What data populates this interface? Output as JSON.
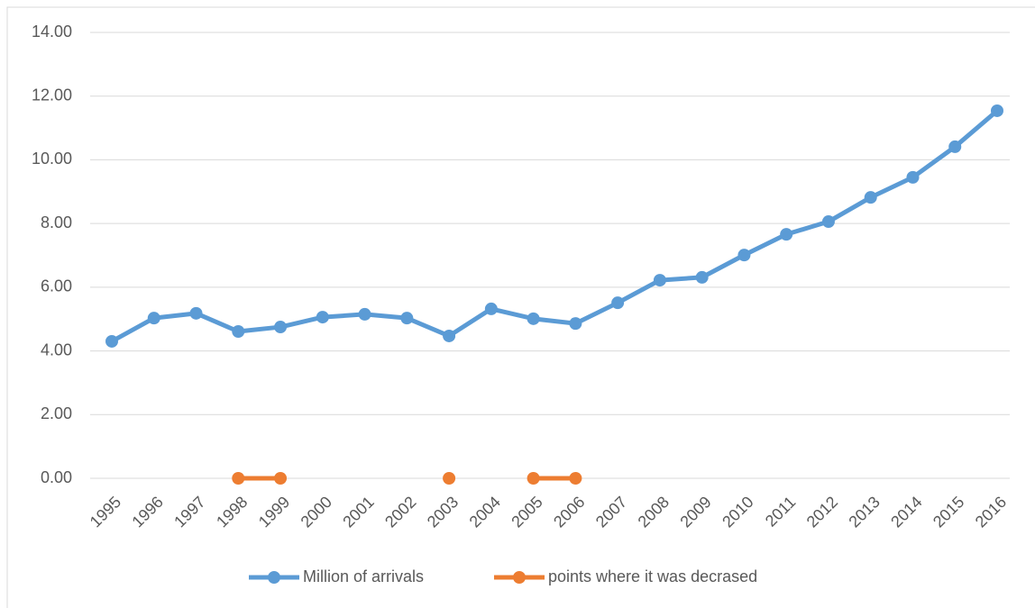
{
  "chart_data": {
    "type": "line",
    "categories": [
      "1995",
      "1996",
      "1997",
      "1998",
      "1999",
      "2000",
      "2001",
      "2002",
      "2003",
      "2004",
      "2005",
      "2006",
      "2007",
      "2008",
      "2009",
      "2010",
      "2011",
      "2012",
      "2013",
      "2014",
      "2015",
      "2016"
    ],
    "series": [
      {
        "name": "Million of arrivals",
        "color": "#5b9bd5",
        "values": [
          4.3,
          5.03,
          5.18,
          4.61,
          4.75,
          5.06,
          5.15,
          5.03,
          4.47,
          5.32,
          5.01,
          4.86,
          5.51,
          6.22,
          6.31,
          7.01,
          7.66,
          8.06,
          8.82,
          9.45,
          10.41,
          11.54
        ]
      },
      {
        "name": "points where it was decrased",
        "color": "#ed7d31",
        "values": [
          null,
          null,
          null,
          0,
          0,
          null,
          null,
          null,
          0,
          null,
          0,
          0,
          null,
          null,
          null,
          null,
          null,
          null,
          null,
          null,
          null,
          null
        ]
      }
    ],
    "ylim": [
      0,
      14
    ],
    "yticks": [
      {
        "value": 0,
        "label": "0.00"
      },
      {
        "value": 2,
        "label": "2.00"
      },
      {
        "value": 4,
        "label": "4.00"
      },
      {
        "value": 6,
        "label": "6.00"
      },
      {
        "value": 8,
        "label": "8.00"
      },
      {
        "value": 10,
        "label": "10.00"
      },
      {
        "value": 12,
        "label": "12.00"
      },
      {
        "value": 14,
        "label": "14.00"
      }
    ],
    "grid": true,
    "legend": "bottom"
  }
}
